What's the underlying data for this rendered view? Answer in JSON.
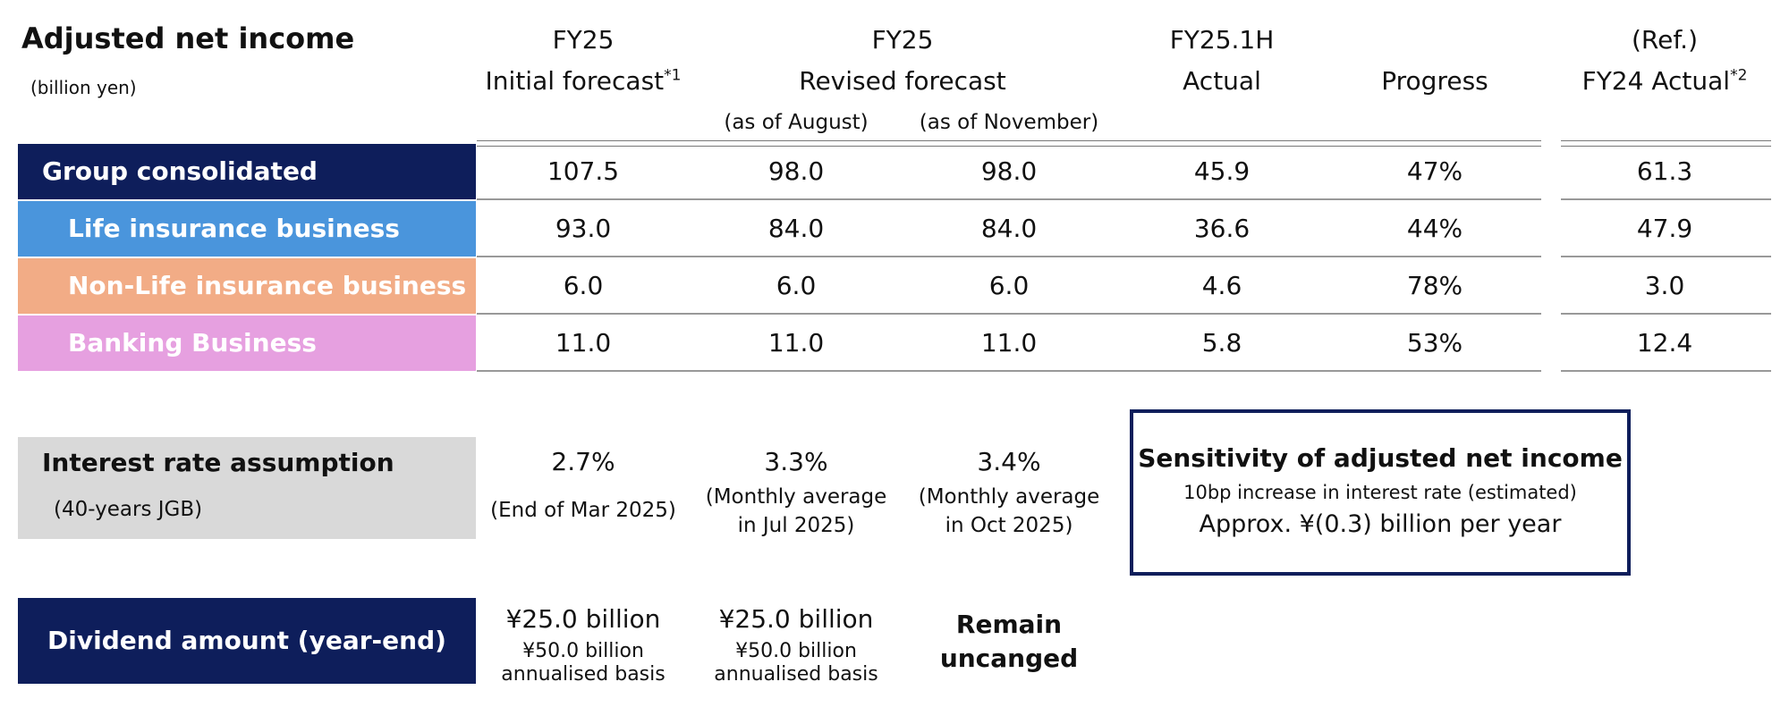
{
  "title": "Adjusted net income",
  "unit": "(billion yen)",
  "columns": [
    {
      "line1": "FY25",
      "line2": "Initial forecast",
      "sup": "*1"
    },
    {
      "line1": "FY25",
      "line2": "Revised forecast",
      "sub_aug": "(as of August)",
      "sub_nov": "(as of November)"
    },
    {
      "line1": "FY25.1H",
      "line2": "Actual"
    },
    {
      "line2": "Progress"
    },
    {
      "line1": "(Ref.)",
      "line2": "FY24 Actual",
      "sup": "*2"
    }
  ],
  "rows": [
    {
      "label": "Group consolidated",
      "color": "#0e1e5b",
      "values": [
        "107.5",
        "98.0",
        "98.0",
        "45.9",
        "47%",
        "61.3"
      ]
    },
    {
      "label": "Life insurance business",
      "color": "#4a95dc",
      "values": [
        "93.0",
        "84.0",
        "84.0",
        "36.6",
        "44%",
        "47.9"
      ]
    },
    {
      "label": "Non-Life insurance business",
      "color": "#f2ac86",
      "values": [
        "6.0",
        "6.0",
        "6.0",
        "4.6",
        "78%",
        "3.0"
      ]
    },
    {
      "label": "Banking Business",
      "color": "#e6a0e0",
      "values": [
        "11.0",
        "11.0",
        "11.0",
        "5.8",
        "53%",
        "12.4"
      ]
    }
  ],
  "interest": {
    "label": "Interest rate assumption",
    "sublabel": "(40-years JGB)",
    "values": [
      {
        "rate": "2.7%",
        "note1": "(End of Mar 2025)",
        "note2": ""
      },
      {
        "rate": "3.3%",
        "note1": "(Monthly average",
        "note2": "in Jul 2025)"
      },
      {
        "rate": "3.4%",
        "note1": "(Monthly average",
        "note2": "in Oct 2025)"
      }
    ]
  },
  "sensitivity": {
    "title": "Sensitivity of adjusted net income",
    "line1": "10bp increase in interest rate (estimated)",
    "line2": "Approx. ¥(0.3) billion per year"
  },
  "dividend": {
    "label": "Dividend amount (year-end)",
    "values": [
      {
        "main": "¥25.0 billion",
        "sub1": "¥50.0 billion",
        "sub2": "annualised basis"
      },
      {
        "main": "¥25.0 billion",
        "sub1": "¥50.0 billion",
        "sub2": "annualised basis"
      },
      {
        "bold1": "Remain",
        "bold2": "uncanged"
      }
    ]
  },
  "colors": {
    "navy": "#0e1e5b",
    "grey": "#d9d9d9"
  }
}
